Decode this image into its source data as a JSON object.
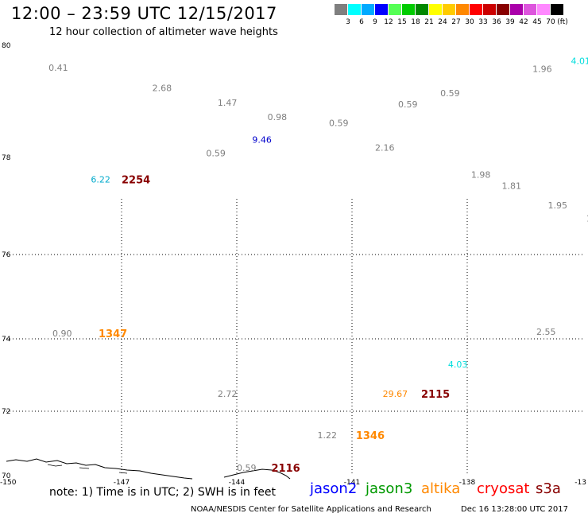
{
  "header": {
    "title": "12:00 – 23:59 UTC 12/15/2017",
    "subtitle": "12 hour collection of altimeter wave heights"
  },
  "color_scale": {
    "unit": "(ft)",
    "bins": [
      {
        "label": "3",
        "color": "#7f7f7f"
      },
      {
        "label": "6",
        "color": "#00ffff"
      },
      {
        "label": "9",
        "color": "#00aaff"
      },
      {
        "label": "12",
        "color": "#0000ff"
      },
      {
        "label": "15",
        "color": "#55ff55"
      },
      {
        "label": "18",
        "color": "#00cc00"
      },
      {
        "label": "21",
        "color": "#008800"
      },
      {
        "label": "24",
        "color": "#ffff00"
      },
      {
        "label": "27",
        "color": "#ffcc00"
      },
      {
        "label": "30",
        "color": "#ff8800"
      },
      {
        "label": "33",
        "color": "#ff0000"
      },
      {
        "label": "36",
        "color": "#cc0000"
      },
      {
        "label": "39",
        "color": "#880000"
      },
      {
        "label": "42",
        "color": "#aa00aa"
      },
      {
        "label": "45",
        "color": "#dd55dd"
      },
      {
        "label": "70",
        "color": "#ff88ff"
      },
      {
        "label": "",
        "color": "#000000"
      }
    ]
  },
  "axes": {
    "lat_labels": [
      "80",
      "78",
      "76",
      "74",
      "72",
      "70"
    ],
    "lon_labels": [
      "-150",
      "-147",
      "-144",
      "-141",
      "-138",
      "-13"
    ]
  },
  "wave_labels": [
    {
      "text": "0.41",
      "lon": -148.9,
      "lat": 79.6,
      "color": "#7f7f7f"
    },
    {
      "text": "2.68",
      "lon": -146.2,
      "lat": 79.24,
      "color": "#7f7f7f"
    },
    {
      "text": "1.47",
      "lon": -144.5,
      "lat": 78.98,
      "color": "#7f7f7f"
    },
    {
      "text": "0.98",
      "lon": -143.2,
      "lat": 78.72,
      "color": "#7f7f7f"
    },
    {
      "text": "9.46",
      "lon": -143.6,
      "lat": 78.32,
      "color": "#0000cc"
    },
    {
      "text": "0.59",
      "lon": -144.8,
      "lat": 78.08,
      "color": "#7f7f7f"
    },
    {
      "text": "0.59",
      "lon": -141.6,
      "lat": 78.62,
      "color": "#7f7f7f"
    },
    {
      "text": "0.59",
      "lon": -139.8,
      "lat": 78.95,
      "color": "#7f7f7f"
    },
    {
      "text": "0.59",
      "lon": -138.7,
      "lat": 79.15,
      "color": "#7f7f7f"
    },
    {
      "text": "2.16",
      "lon": -140.4,
      "lat": 78.18,
      "color": "#7f7f7f"
    },
    {
      "text": "1.96",
      "lon": -136.3,
      "lat": 79.58,
      "color": "#7f7f7f"
    },
    {
      "text": "4.01",
      "lon": -135.3,
      "lat": 79.72,
      "color": "#00dddd"
    },
    {
      "text": "1.98",
      "lon": -137.9,
      "lat": 77.65,
      "color": "#7f7f7f"
    },
    {
      "text": "1.81",
      "lon": -137.1,
      "lat": 77.42,
      "color": "#7f7f7f"
    },
    {
      "text": "1.95",
      "lon": -135.9,
      "lat": 77.02,
      "color": "#7f7f7f"
    },
    {
      "text": "1",
      "lon": -134.9,
      "lat": 76.75,
      "color": "#7f7f7f"
    },
    {
      "text": "6.22",
      "lon": -147.8,
      "lat": 77.55,
      "color": "#00aacc"
    },
    {
      "text": "0.90",
      "lon": -148.8,
      "lat": 74.13,
      "color": "#7f7f7f"
    },
    {
      "text": "2.55",
      "lon": -136.2,
      "lat": 74.17,
      "color": "#7f7f7f"
    },
    {
      "text": "4.03",
      "lon": -138.5,
      "lat": 73.3,
      "color": "#00dddd"
    },
    {
      "text": "2.72",
      "lon": -144.5,
      "lat": 72.48,
      "color": "#7f7f7f"
    },
    {
      "text": "29.67",
      "lon": -140.2,
      "lat": 72.48,
      "color": "#ff8800"
    },
    {
      "text": "1.22",
      "lon": -141.9,
      "lat": 71.26,
      "color": "#7f7f7f"
    },
    {
      "text": "0.59",
      "lon": -144.0,
      "lat": 70.25,
      "color": "#7f7f7f"
    }
  ],
  "time_labels": [
    {
      "text": "2254",
      "lon": -147.0,
      "lat": 77.55,
      "color": "#880000"
    },
    {
      "text": "1347",
      "lon": -147.6,
      "lat": 74.13,
      "color": "#ff8800"
    },
    {
      "text": "2115",
      "lon": -139.2,
      "lat": 72.48,
      "color": "#880000"
    },
    {
      "text": "1346",
      "lon": -140.9,
      "lat": 71.26,
      "color": "#ff8800"
    },
    {
      "text": "2116",
      "lon": -143.1,
      "lat": 70.25,
      "color": "#880000"
    }
  ],
  "footer": {
    "note": "note: 1) Time is in UTC; 2) SWH is in feet",
    "satellites": [
      {
        "name": "jason2",
        "color": "#0000ff"
      },
      {
        "name": "jason3",
        "color": "#009900"
      },
      {
        "name": "altika",
        "color": "#ff8800"
      },
      {
        "name": "cryosat",
        "color": "#ff0000"
      },
      {
        "name": "s3a",
        "color": "#880000"
      }
    ],
    "credit": "NOAA/NESDIS Center for Satellite Applications and Research",
    "issued": "Dec 16 13:28:00 UTC 2017"
  }
}
